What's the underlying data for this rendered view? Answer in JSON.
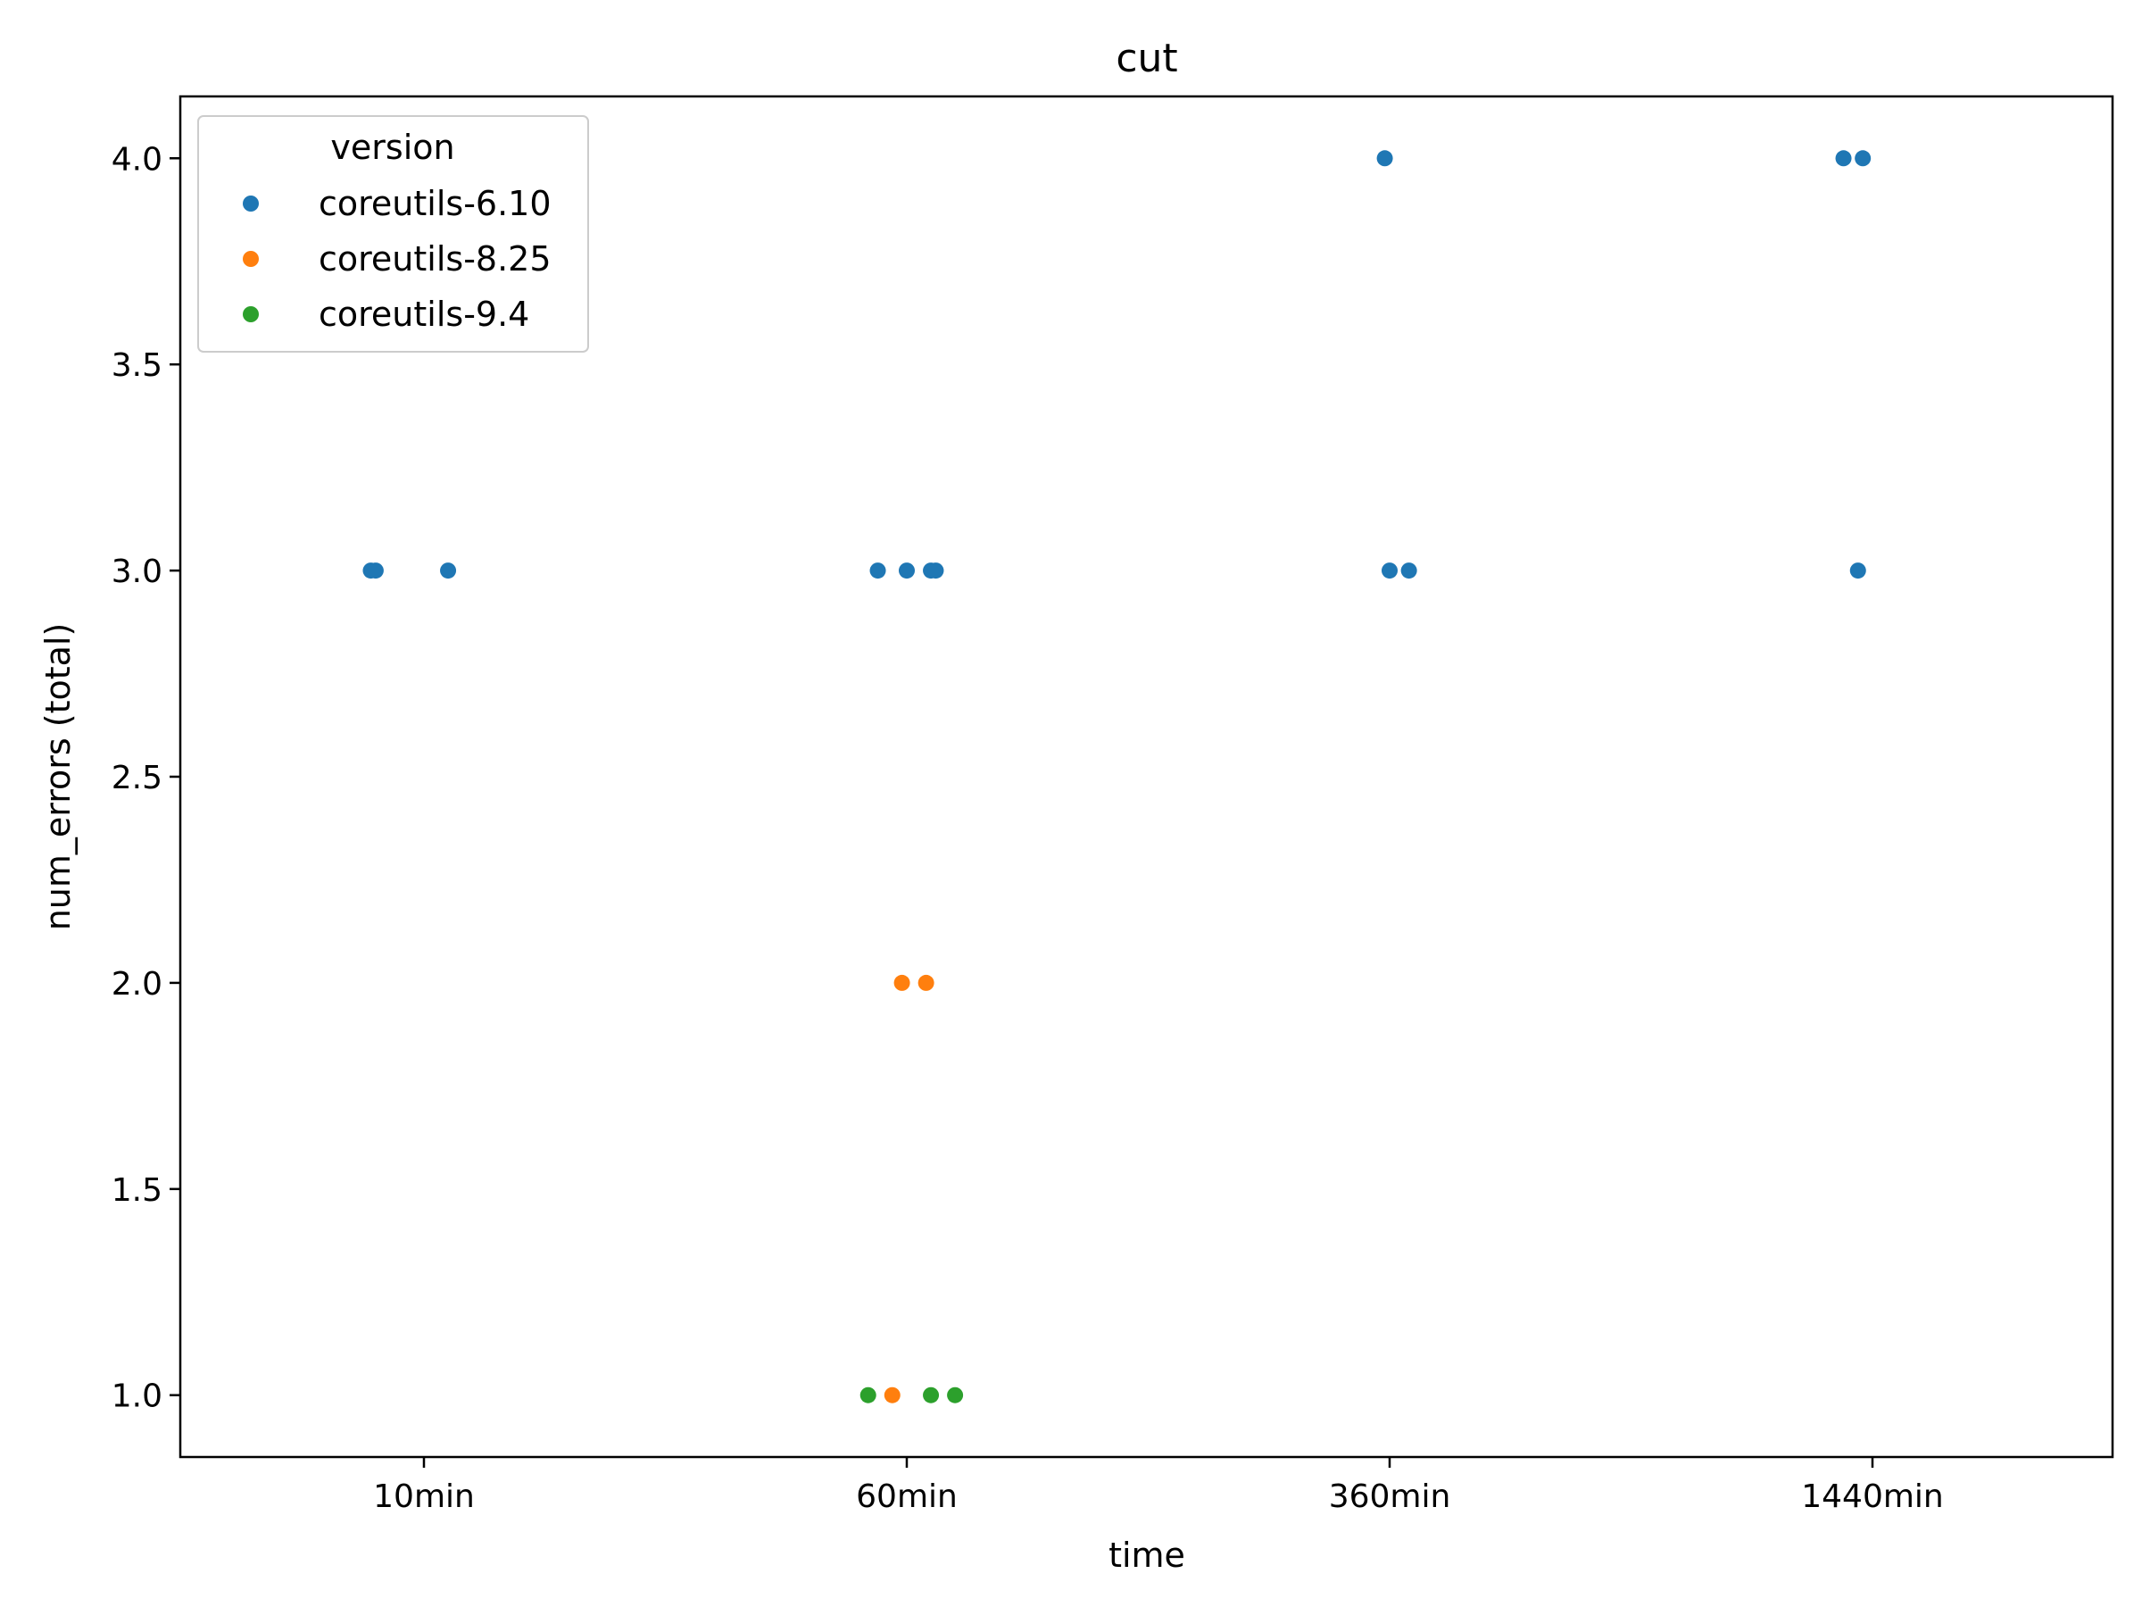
{
  "chart_data": {
    "type": "scatter",
    "title": "cut",
    "xlabel": "time",
    "ylabel": "num_errors (total)",
    "categories": [
      "10min",
      "60min",
      "360min",
      "1440min"
    ],
    "ylim": [
      0.85,
      4.15
    ],
    "yticks": [
      "1.0",
      "1.5",
      "2.0",
      "2.5",
      "3.0",
      "3.5",
      "4.0"
    ],
    "grid": false,
    "legend": {
      "title": "version",
      "placement": "top-left"
    },
    "series": [
      {
        "name": "coreutils-6.10",
        "color": "#1f77b4",
        "points": [
          {
            "x": "10min",
            "jitter": -0.11,
            "y": 3
          },
          {
            "x": "10min",
            "jitter": -0.1,
            "y": 3
          },
          {
            "x": "10min",
            "jitter": 0.05,
            "y": 3
          },
          {
            "x": "60min",
            "jitter": -0.06,
            "y": 3
          },
          {
            "x": "60min",
            "jitter": 0.0,
            "y": 3
          },
          {
            "x": "60min",
            "jitter": 0.05,
            "y": 3
          },
          {
            "x": "60min",
            "jitter": 0.06,
            "y": 3
          },
          {
            "x": "360min",
            "jitter": -0.01,
            "y": 4
          },
          {
            "x": "360min",
            "jitter": 0.0,
            "y": 3
          },
          {
            "x": "360min",
            "jitter": 0.04,
            "y": 3
          },
          {
            "x": "1440min",
            "jitter": -0.06,
            "y": 4
          },
          {
            "x": "1440min",
            "jitter": -0.02,
            "y": 4
          },
          {
            "x": "1440min",
            "jitter": -0.03,
            "y": 3
          }
        ]
      },
      {
        "name": "coreutils-8.25",
        "color": "#ff7f0e",
        "points": [
          {
            "x": "60min",
            "jitter": -0.01,
            "y": 2
          },
          {
            "x": "60min",
            "jitter": 0.04,
            "y": 2
          },
          {
            "x": "60min",
            "jitter": -0.03,
            "y": 1
          }
        ]
      },
      {
        "name": "coreutils-9.4",
        "color": "#2ca02c",
        "points": [
          {
            "x": "60min",
            "jitter": -0.08,
            "y": 1
          },
          {
            "x": "60min",
            "jitter": 0.05,
            "y": 1
          },
          {
            "x": "60min",
            "jitter": 0.1,
            "y": 1
          }
        ]
      }
    ]
  }
}
